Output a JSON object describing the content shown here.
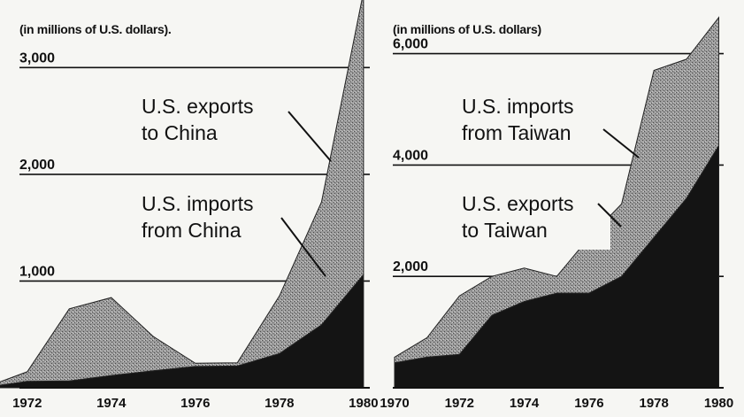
{
  "chart_data": [
    {
      "type": "area",
      "unit_label": "(in millions of U.S. dollars).",
      "x": [
        1971,
        1972,
        1973,
        1974,
        1975,
        1976,
        1977,
        1978,
        1979,
        1980
      ],
      "xticks": [
        "1972",
        "1974",
        "1976",
        "1978",
        "1980"
      ],
      "yticks": [
        "1,000",
        "2,000",
        "3,000"
      ],
      "ylim": [
        0,
        3600
      ],
      "stacked": true,
      "series": [
        {
          "name": "U.S. imports from China",
          "values": [
            5,
            60,
            65,
            115,
            160,
            200,
            205,
            320,
            590,
            1060
          ]
        },
        {
          "name": "U.S. exports to China",
          "values": [
            0,
            90,
            675,
            730,
            320,
            30,
            30,
            540,
            1150,
            2650
          ]
        }
      ],
      "annotations": [
        {
          "text_lines": [
            "U.S. exports",
            "to China"
          ],
          "series": "U.S. exports to China"
        },
        {
          "text_lines": [
            "U.S. imports",
            "from China"
          ],
          "series": "U.S. imports from China"
        }
      ]
    },
    {
      "type": "area",
      "unit_label": "(in millions of U.S. dollars)",
      "x": [
        1970,
        1971,
        1972,
        1973,
        1974,
        1975,
        1976,
        1977,
        1978,
        1979,
        1980
      ],
      "xticks": [
        "1970",
        "1972",
        "1974",
        "1976",
        "1978",
        "1980"
      ],
      "yticks": [
        "2,000",
        "4,000",
        "6,000"
      ],
      "ylim": [
        0,
        6900
      ],
      "stacked": true,
      "series": [
        {
          "name": "U.S. exports to Taiwan",
          "values": [
            450,
            550,
            600,
            1300,
            1550,
            1700,
            1700,
            2000,
            2700,
            3400,
            4350
          ]
        },
        {
          "name": "U.S. imports from Taiwan",
          "values": [
            100,
            350,
            1050,
            700,
            600,
            300,
            1000,
            1300,
            3000,
            2500,
            2300
          ]
        }
      ],
      "annotations": [
        {
          "text_lines": [
            "U.S. imports",
            "from Taiwan"
          ],
          "series": "U.S. imports from Taiwan"
        },
        {
          "text_lines": [
            "U.S. exports",
            "to Taiwan"
          ],
          "series": "U.S. exports to Taiwan"
        }
      ]
    }
  ]
}
